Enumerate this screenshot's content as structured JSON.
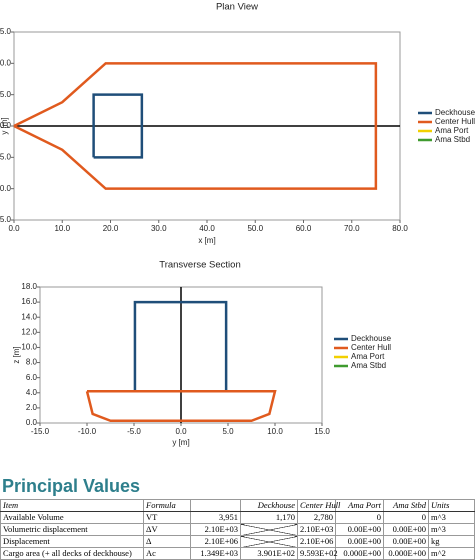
{
  "chart_data": [
    {
      "type": "line",
      "title": "Plan View",
      "x_label": "x [m]",
      "y_label": "y [m]",
      "xlim": [
        0,
        80
      ],
      "xticks": [
        {
          "value": 0,
          "label": "0.0"
        },
        {
          "value": 10,
          "label": "10.0"
        },
        {
          "value": 20,
          "label": "20.0"
        },
        {
          "value": 30,
          "label": "30.0"
        },
        {
          "value": 40,
          "label": "40.0"
        },
        {
          "value": 50,
          "label": "50.0"
        },
        {
          "value": 60,
          "label": "60.0"
        },
        {
          "value": 70,
          "label": "70.0"
        },
        {
          "value": 80,
          "label": "80.0"
        }
      ],
      "ylim": [
        -15,
        15
      ],
      "yticks": [
        {
          "value": -15,
          "label": "-15.0"
        },
        {
          "value": -10,
          "label": "-10.0"
        },
        {
          "value": -5,
          "label": "-5.0"
        },
        {
          "value": 0,
          "label": "0.0"
        },
        {
          "value": 5,
          "label": "5.0"
        },
        {
          "value": 10,
          "label": "10.0"
        },
        {
          "value": 15,
          "label": "15.0"
        }
      ],
      "legend": "right",
      "series": [
        {
          "name": "Deckhouse",
          "color": "#1f4e79",
          "x": [
            16.5,
            16.5,
            26.5,
            26.5,
            16.5
          ],
          "values": [
            -5,
            5,
            5,
            -5,
            -5
          ]
        },
        {
          "name": "Center Hull",
          "color": "#e05a1e",
          "x": [
            0,
            10,
            19,
            75,
            75,
            19,
            10,
            0
          ],
          "values": [
            0,
            3.8,
            10,
            10,
            -10,
            -10,
            -3.8,
            0
          ]
        },
        {
          "name": "Ama Port",
          "color": "#f2d000",
          "x": [],
          "values": []
        },
        {
          "name": "Ama Stbd",
          "color": "#3f9b2f",
          "x": [],
          "values": []
        }
      ]
    },
    {
      "type": "line",
      "title": "Transverse Section",
      "x_label": "y [m]",
      "y_label": "z [m]",
      "xlim": [
        -15,
        15
      ],
      "xticks": [
        {
          "value": -15,
          "label": "-15.0"
        },
        {
          "value": -10,
          "label": "-10.0"
        },
        {
          "value": -5,
          "label": "-5.0"
        },
        {
          "value": 0,
          "label": "0.0"
        },
        {
          "value": 5,
          "label": "5.0"
        },
        {
          "value": 10,
          "label": "10.0"
        },
        {
          "value": 15,
          "label": "15.0"
        }
      ],
      "ylim": [
        0,
        18
      ],
      "yticks": [
        {
          "value": 0,
          "label": "0.0"
        },
        {
          "value": 2,
          "label": "2.0"
        },
        {
          "value": 4,
          "label": "4.0"
        },
        {
          "value": 6,
          "label": "6.0"
        },
        {
          "value": 8,
          "label": "8.0"
        },
        {
          "value": 10,
          "label": "10.0"
        },
        {
          "value": 12,
          "label": "12.0"
        },
        {
          "value": 14,
          "label": "14.0"
        },
        {
          "value": 16,
          "label": "16.0"
        },
        {
          "value": 18,
          "label": "18.0"
        }
      ],
      "legend": "right",
      "series": [
        {
          "name": "Deckhouse",
          "color": "#1f4e79",
          "x": [
            -4.9,
            -4.9,
            4.8,
            4.8
          ],
          "values": [
            4.2,
            16,
            16,
            4.2
          ]
        },
        {
          "name": "Center Hull",
          "color": "#e05a1e",
          "x": [
            -10,
            10,
            9.4,
            7.5,
            -7.5,
            -9.4,
            -10
          ],
          "values": [
            4.2,
            4.2,
            1.2,
            0.3,
            0.3,
            1.2,
            4.2
          ]
        },
        {
          "name": "Ama Port",
          "color": "#f2d000",
          "x": [],
          "values": []
        },
        {
          "name": "Ama Stbd",
          "color": "#3f9b2f",
          "x": [],
          "values": []
        }
      ]
    }
  ],
  "table": {
    "title": "Principal Values",
    "header": [
      "Item",
      "Formula",
      null,
      "Deckhouse",
      "Center Hull",
      "Ama Port",
      "Ama Stbd",
      "Units"
    ],
    "rows": [
      [
        "Available Volume",
        "VT",
        "3,951",
        "1,170",
        "2,780",
        "0",
        "0",
        "m^3"
      ],
      [
        "Volumetric displacement",
        "ΔV",
        "2.10E+03",
        null,
        "2.10E+03",
        "0.00E+00",
        "0.00E+00",
        "m^3"
      ],
      [
        "Displacement",
        "Δ",
        "2.10E+06",
        null,
        "2.10E+06",
        "0.00E+00",
        "0.00E+00",
        "kg"
      ],
      [
        "Cargo area (+ all decks of deckhouse)",
        "Ac",
        "1.349E+03",
        "3.901E+02",
        "9.593E+02",
        "0.000E+00",
        "0.000E+00",
        "m^2"
      ]
    ]
  }
}
